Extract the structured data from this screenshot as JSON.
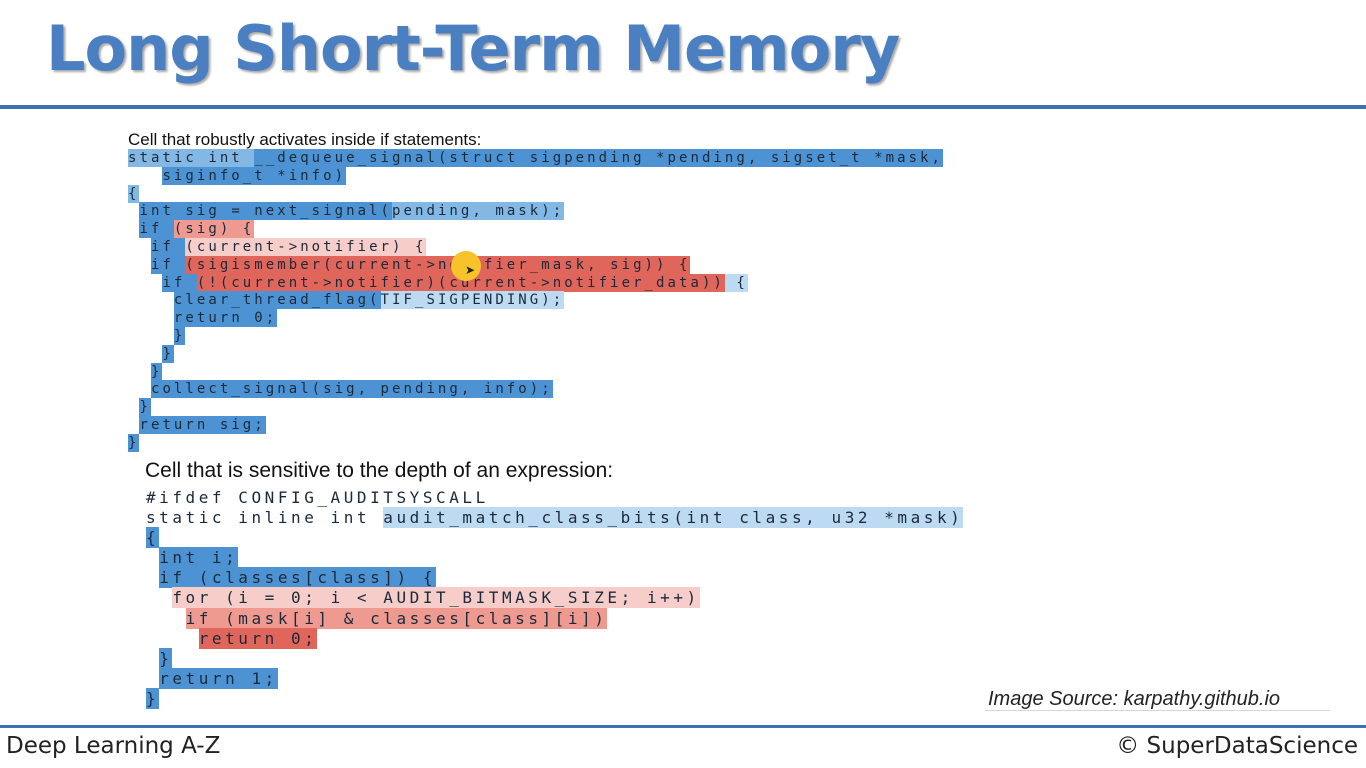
{
  "title": "Long Short-Term Memory",
  "caption_if": "Cell that robustly activates inside if statements:",
  "caption_depth": "Cell that is sensitive to the depth of an expression:",
  "image_source": "Image Source: karpathy.github.io",
  "footer": {
    "course": "Deep Learning A-Z",
    "brand": "© SuperDataScience"
  },
  "colors": {
    "title": "#4a7fc1",
    "rule": "#3d6fb5",
    "blue_strong": "#4d93d3",
    "blue_mid": "#82b8e3",
    "blue_light": "#bcdaf2",
    "red_strong": "#e0655a",
    "red_mid": "#ee9a91",
    "red_light": "#f6cdc8",
    "cursor": "#f6c428"
  },
  "code_if": [
    [
      [
        "static int ",
        "B2"
      ],
      [
        "__dequeue_signal(struct sigpending *pending, sigset_t *mask,",
        "B1"
      ]
    ],
    [
      [
        "   ",
        ""
      ],
      [
        "siginfo_t *info)",
        "B1"
      ]
    ],
    [
      [
        "{",
        "B2"
      ]
    ],
    [
      [
        " ",
        ""
      ],
      [
        "int sig = next_signal(",
        "B1"
      ],
      [
        "pending, mask);",
        "B2"
      ]
    ],
    [
      [
        " ",
        ""
      ],
      [
        "if ",
        "B1"
      ],
      [
        "(sig) {",
        "R2"
      ]
    ],
    [
      [
        "  ",
        ""
      ],
      [
        "if ",
        "B1"
      ],
      [
        "(current->notifier) {",
        "R3"
      ]
    ],
    [
      [
        "  ",
        ""
      ],
      [
        "if ",
        "B1"
      ],
      [
        "(sigismember(current->notifier_mask, sig)) {",
        "R1"
      ]
    ],
    [
      [
        "   ",
        ""
      ],
      [
        "if ",
        "B1"
      ],
      [
        "(!(current->notifier)(current->notifier_data))",
        "R1"
      ],
      [
        " {",
        "B3"
      ]
    ],
    [
      [
        "    ",
        ""
      ],
      [
        "clear_thread_flag(",
        "B1"
      ],
      [
        "TIF_SIGPENDING);",
        "B3"
      ]
    ],
    [
      [
        "    ",
        ""
      ],
      [
        "return 0;",
        "B1"
      ]
    ],
    [
      [
        "    ",
        ""
      ],
      [
        "}",
        "B1"
      ]
    ],
    [
      [
        "   ",
        ""
      ],
      [
        "}",
        "B1"
      ]
    ],
    [
      [
        "  ",
        ""
      ],
      [
        "}",
        "B1"
      ]
    ],
    [
      [
        "  ",
        ""
      ],
      [
        "collect_signal(sig, pending, info);",
        "B1"
      ]
    ],
    [
      [
        " ",
        ""
      ],
      [
        "}",
        "B1"
      ]
    ],
    [
      [
        " ",
        ""
      ],
      [
        "return sig;",
        "B1"
      ]
    ],
    [
      [
        "}",
        "B1"
      ]
    ]
  ],
  "code_depth": [
    [
      [
        "#ifdef CONFIG_AUDITSYSCALL",
        ""
      ]
    ],
    [
      [
        "static inline int ",
        ""
      ],
      [
        "audit_match_class_bits(int class, u32 *mask)",
        "B3"
      ]
    ],
    [
      [
        "{",
        "B1"
      ]
    ],
    [
      [
        " ",
        ""
      ],
      [
        "int i;",
        "B1"
      ]
    ],
    [
      [
        " ",
        ""
      ],
      [
        "if (classes[class]) {",
        "B1"
      ]
    ],
    [
      [
        "  ",
        ""
      ],
      [
        "for (i = 0; i < AUDIT_BITMASK_SIZE; i++)",
        "R3"
      ]
    ],
    [
      [
        "   ",
        ""
      ],
      [
        "if (mask[i] & classes[class][i])",
        "R2"
      ]
    ],
    [
      [
        "    ",
        ""
      ],
      [
        "return 0;",
        "R1"
      ]
    ],
    [
      [
        " ",
        ""
      ],
      [
        "}",
        "B1"
      ]
    ],
    [
      [
        " ",
        ""
      ],
      [
        "return 1;",
        "B1"
      ]
    ],
    [
      [
        "}",
        "B1"
      ]
    ]
  ]
}
